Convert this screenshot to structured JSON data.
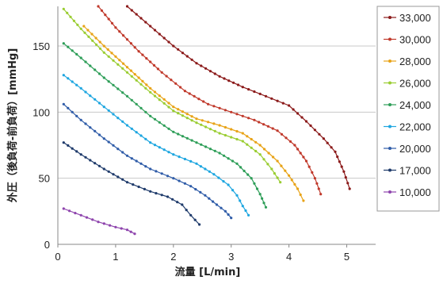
{
  "chart_data": {
    "type": "line",
    "xlabel": "流量 [L/min]",
    "ylabel": "外圧（後負荷-前負荷）[mmHg]",
    "xlim": [
      0,
      5.5
    ],
    "ylim": [
      0,
      180
    ],
    "xticks": [
      0,
      1,
      2,
      3,
      4,
      5
    ],
    "yticks": [
      0,
      50,
      100,
      150
    ],
    "grid": "horizontal",
    "legend_position": "right",
    "series": [
      {
        "name": "33,000",
        "color": "#8B1A1A",
        "x": [
          1.2,
          1.6,
          2.0,
          2.4,
          2.8,
          3.2,
          3.6,
          4.0,
          4.3,
          4.6,
          4.8,
          4.95,
          5.05
        ],
        "y": [
          180,
          165,
          150,
          137,
          127,
          119,
          112,
          105,
          93,
          80,
          70,
          55,
          42
        ]
      },
      {
        "name": "30,000",
        "color": "#C0392B",
        "x": [
          0.7,
          1.0,
          1.4,
          1.8,
          2.2,
          2.6,
          3.0,
          3.4,
          3.8,
          4.1,
          4.3,
          4.45,
          4.55
        ],
        "y": [
          180,
          164,
          146,
          130,
          116,
          106,
          100,
          94,
          86,
          75,
          63,
          50,
          38
        ]
      },
      {
        "name": "28,000",
        "color": "#E8A317",
        "x": [
          0.45,
          0.8,
          1.2,
          1.6,
          2.0,
          2.4,
          2.8,
          3.2,
          3.5,
          3.8,
          4.0,
          4.15,
          4.25
        ],
        "y": [
          165,
          150,
          134,
          118,
          104,
          95,
          90,
          84,
          75,
          63,
          52,
          42,
          33
        ]
      },
      {
        "name": "26,000",
        "color": "#9ACD32",
        "x": [
          0.1,
          0.4,
          0.8,
          1.2,
          1.6,
          2.0,
          2.4,
          2.8,
          3.2,
          3.5,
          3.7,
          3.85
        ],
        "y": [
          178,
          163,
          145,
          130,
          115,
          101,
          92,
          84,
          78,
          68,
          57,
          47
        ]
      },
      {
        "name": "24,000",
        "color": "#2E9E58",
        "x": [
          0.1,
          0.4,
          0.8,
          1.2,
          1.6,
          2.0,
          2.4,
          2.8,
          3.1,
          3.35,
          3.5,
          3.6
        ],
        "y": [
          152,
          141,
          126,
          112,
          97,
          85,
          77,
          69,
          61,
          50,
          38,
          28
        ]
      },
      {
        "name": "22,000",
        "color": "#1EA6E0",
        "x": [
          0.1,
          0.4,
          0.8,
          1.2,
          1.6,
          2.0,
          2.4,
          2.7,
          2.95,
          3.1,
          3.2,
          3.3
        ],
        "y": [
          128,
          118,
          104,
          90,
          77,
          68,
          61,
          53,
          45,
          37,
          29,
          22
        ]
      },
      {
        "name": "20,000",
        "color": "#2F5CA8",
        "x": [
          0.1,
          0.4,
          0.8,
          1.2,
          1.6,
          2.0,
          2.3,
          2.55,
          2.75,
          2.9,
          3.0
        ],
        "y": [
          106,
          94,
          80,
          67,
          57,
          50,
          44,
          37,
          30,
          25,
          20
        ]
      },
      {
        "name": "17,000",
        "color": "#1F3B6B",
        "x": [
          0.1,
          0.4,
          0.8,
          1.2,
          1.6,
          1.9,
          2.15,
          2.3,
          2.45
        ],
        "y": [
          77,
          68,
          57,
          47,
          40,
          36,
          30,
          22,
          15
        ]
      },
      {
        "name": "10,000",
        "color": "#8E44AD",
        "x": [
          0.1,
          0.4,
          0.7,
          1.0,
          1.2,
          1.33
        ],
        "y": [
          27,
          22,
          17,
          13,
          11,
          8
        ]
      }
    ]
  }
}
